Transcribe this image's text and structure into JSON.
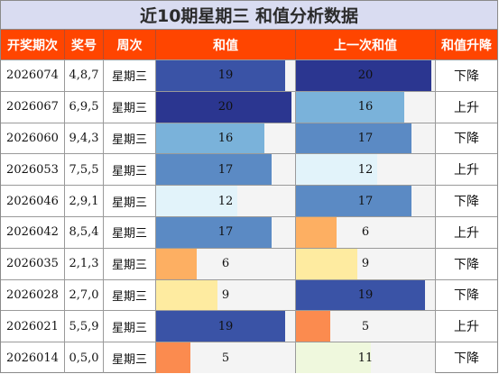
{
  "title": "近10期星期三 和值分析数据",
  "headers": {
    "period": "开奖期次",
    "number": "奖号",
    "weekday": "周次",
    "sum": "和值",
    "prev_sum": "上一次和值",
    "trend": "和值升降"
  },
  "chart_data": {
    "type": "table",
    "title": "近10期星期三 和值分析数据",
    "columns": [
      "开奖期次",
      "奖号",
      "周次",
      "和值",
      "上一次和值",
      "和值升降"
    ],
    "sum_axis_max": 20.5,
    "rows": [
      {
        "period": "2026074",
        "number": "4,8,7",
        "weekday": "星期三",
        "sum": 19,
        "prev_sum": 20,
        "trend": "下降"
      },
      {
        "period": "2026067",
        "number": "6,9,5",
        "weekday": "星期三",
        "sum": 20,
        "prev_sum": 16,
        "trend": "上升"
      },
      {
        "period": "2026060",
        "number": "9,4,3",
        "weekday": "星期三",
        "sum": 16,
        "prev_sum": 17,
        "trend": "下降"
      },
      {
        "period": "2026053",
        "number": "7,5,5",
        "weekday": "星期三",
        "sum": 17,
        "prev_sum": 12,
        "trend": "上升"
      },
      {
        "period": "2026046",
        "number": "2,9,1",
        "weekday": "星期三",
        "sum": 12,
        "prev_sum": 17,
        "trend": "下降"
      },
      {
        "period": "2026042",
        "number": "8,5,4",
        "weekday": "星期三",
        "sum": 17,
        "prev_sum": 6,
        "trend": "上升"
      },
      {
        "period": "2026035",
        "number": "2,1,3",
        "weekday": "星期三",
        "sum": 6,
        "prev_sum": 9,
        "trend": "下降"
      },
      {
        "period": "2026028",
        "number": "2,7,0",
        "weekday": "星期三",
        "sum": 9,
        "prev_sum": 19,
        "trend": "下降"
      },
      {
        "period": "2026021",
        "number": "5,5,9",
        "weekday": "星期三",
        "sum": 19,
        "prev_sum": 5,
        "trend": "上升"
      },
      {
        "period": "2026014",
        "number": "0,5,0",
        "weekday": "星期三",
        "sum": 5,
        "prev_sum": 11,
        "trend": "下降"
      }
    ],
    "color_scale": {
      "5": "#fb8b4f",
      "6": "#fdaf62",
      "9": "#feeba0",
      "11": "#eff8dd",
      "12": "#e2f3fa",
      "16": "#7ab2da",
      "17": "#5b8ac4",
      "19": "#3a53a6",
      "20": "#2b3690"
    }
  }
}
